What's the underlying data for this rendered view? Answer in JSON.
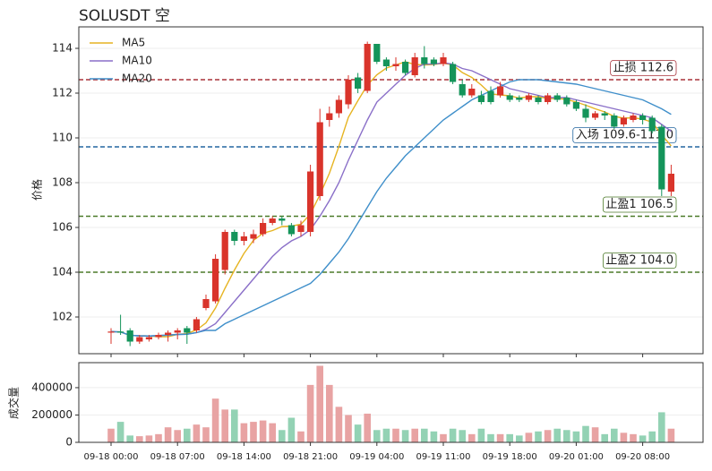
{
  "chart_data": [
    {
      "type": "candlestick",
      "title": "SOLUSDT  空",
      "ylabel": "价格",
      "x": [
        "09-18 00:00",
        "09-18 01:00",
        "09-18 02:00",
        "09-18 03:00",
        "09-18 04:00",
        "09-18 05:00",
        "09-18 06:00",
        "09-18 07:00",
        "09-18 08:00",
        "09-18 09:00",
        "09-18 10:00",
        "09-18 11:00",
        "09-18 12:00",
        "09-18 13:00",
        "09-18 14:00",
        "09-18 15:00",
        "09-18 16:00",
        "09-18 17:00",
        "09-18 18:00",
        "09-18 19:00",
        "09-18 20:00",
        "09-18 21:00",
        "09-18 22:00",
        "09-18 23:00",
        "09-19 00:00",
        "09-19 01:00",
        "09-19 02:00",
        "09-19 03:00",
        "09-19 04:00",
        "09-19 05:00",
        "09-19 06:00",
        "09-19 07:00",
        "09-19 08:00",
        "09-19 09:00",
        "09-19 10:00",
        "09-19 11:00",
        "09-19 12:00",
        "09-19 13:00",
        "09-19 14:00",
        "09-19 15:00",
        "09-19 16:00",
        "09-19 17:00",
        "09-19 18:00",
        "09-19 19:00",
        "09-19 20:00",
        "09-19 21:00",
        "09-19 22:00",
        "09-19 23:00",
        "09-20 00:00",
        "09-20 01:00",
        "09-20 02:00",
        "09-20 03:00",
        "09-20 04:00",
        "09-20 05:00",
        "09-20 06:00",
        "09-20 07:00",
        "09-20 08:00",
        "09-20 09:00",
        "09-20 10:00",
        "09-20 11:00"
      ],
      "xticks": [
        "09-18 00:00",
        "09-18 07:00",
        "09-18 14:00",
        "09-18 21:00",
        "09-19 04:00",
        "09-19 11:00",
        "09-19 18:00",
        "09-20 01:00",
        "09-20 08:00"
      ],
      "open": [
        101.3,
        101.35,
        101.4,
        100.9,
        101.0,
        101.1,
        101.2,
        101.3,
        101.5,
        101.4,
        102.4,
        102.7,
        104.1,
        105.8,
        105.4,
        105.5,
        105.7,
        106.2,
        106.4,
        106.1,
        105.8,
        105.8,
        107.4,
        110.8,
        111.1,
        111.5,
        112.7,
        112.1,
        114.2,
        113.5,
        113.2,
        113.4,
        112.8,
        113.6,
        113.5,
        113.3,
        113.3,
        112.4,
        111.9,
        111.9,
        112.1,
        111.9,
        111.9,
        111.8,
        111.7,
        111.8,
        111.6,
        111.9,
        111.8,
        111.6,
        111.3,
        110.9,
        111.1,
        111.0,
        110.6,
        110.8,
        111.0,
        110.9,
        110.5,
        107.6
      ],
      "high": [
        101.5,
        102.1,
        101.5,
        101.2,
        101.2,
        101.3,
        101.4,
        101.5,
        101.6,
        102.0,
        103.0,
        104.8,
        105.9,
        105.9,
        105.8,
        105.9,
        106.4,
        106.5,
        106.5,
        106.2,
        106.3,
        108.8,
        111.3,
        111.4,
        111.9,
        112.8,
        112.9,
        114.3,
        114.2,
        113.6,
        113.6,
        113.5,
        113.8,
        114.1,
        113.6,
        113.8,
        113.4,
        112.6,
        112.4,
        112.1,
        112.3,
        112.5,
        112.0,
        111.9,
        112.0,
        111.9,
        112.0,
        112.0,
        111.9,
        111.7,
        111.5,
        111.2,
        111.2,
        111.1,
        111.0,
        111.1,
        111.1,
        111.0,
        110.6,
        108.8
      ],
      "low": [
        100.8,
        101.2,
        100.7,
        100.8,
        100.9,
        101.0,
        100.9,
        101.0,
        100.8,
        101.3,
        102.3,
        102.6,
        103.9,
        105.2,
        105.2,
        105.3,
        105.6,
        106.1,
        106.1,
        105.6,
        105.6,
        105.6,
        107.2,
        110.5,
        110.9,
        111.3,
        112.0,
        112.0,
        113.3,
        113.0,
        113.0,
        112.8,
        112.7,
        113.1,
        113.2,
        113.2,
        112.4,
        111.8,
        111.8,
        111.5,
        111.5,
        111.8,
        111.6,
        111.6,
        111.6,
        111.5,
        111.5,
        111.6,
        111.4,
        111.2,
        110.7,
        110.8,
        110.8,
        110.4,
        110.5,
        110.7,
        110.6,
        110.2,
        107.4,
        107.4
      ],
      "close": [
        101.35,
        101.3,
        100.9,
        101.1,
        101.1,
        101.2,
        101.3,
        101.4,
        101.3,
        101.9,
        102.8,
        104.6,
        105.8,
        105.4,
        105.6,
        105.7,
        106.2,
        106.4,
        106.3,
        105.7,
        106.1,
        108.5,
        110.7,
        111.1,
        111.7,
        112.6,
        112.2,
        114.2,
        113.4,
        113.2,
        113.3,
        112.9,
        113.6,
        113.3,
        113.3,
        113.6,
        112.5,
        111.9,
        112.2,
        111.6,
        111.6,
        112.3,
        111.7,
        111.7,
        111.9,
        111.6,
        111.9,
        111.7,
        111.5,
        111.3,
        110.9,
        111.1,
        111.0,
        110.5,
        110.9,
        111.0,
        110.8,
        110.3,
        107.7,
        108.4
      ],
      "up_color": "#d9342b",
      "down_color": "#14945a",
      "series": [
        {
          "name": "MA5",
          "color": "#e6b422",
          "values": [
            101.35,
            101.33,
            101.18,
            101.16,
            101.15,
            101.12,
            101.12,
            101.22,
            101.26,
            101.42,
            101.74,
            102.4,
            103.28,
            104.1,
            104.84,
            105.42,
            105.74,
            105.86,
            106.04,
            106.06,
            106.14,
            106.6,
            107.46,
            108.42,
            109.62,
            110.92,
            111.66,
            112.36,
            112.82,
            113.12,
            113.26,
            113.4,
            113.28,
            113.26,
            113.28,
            113.34,
            113.26,
            112.92,
            112.7,
            112.36,
            111.96,
            111.92,
            111.88,
            111.78,
            111.84,
            111.84,
            111.76,
            111.76,
            111.72,
            111.6,
            111.46,
            111.3,
            111.16,
            110.96,
            110.88,
            110.9,
            110.84,
            110.7,
            110.14,
            109.64
          ]
        },
        {
          "name": "MA10",
          "color": "#8a6fc8",
          "values": [
            101.35,
            101.33,
            101.18,
            101.16,
            101.15,
            101.17,
            101.19,
            101.22,
            101.23,
            101.3,
            101.45,
            101.7,
            102.2,
            102.7,
            103.2,
            103.7,
            104.2,
            104.7,
            105.1,
            105.4,
            105.6,
            105.9,
            106.5,
            107.2,
            108.0,
            109.0,
            109.9,
            110.8,
            111.6,
            112.0,
            112.4,
            112.8,
            113.1,
            113.3,
            113.3,
            113.35,
            113.3,
            113.1,
            113.0,
            112.8,
            112.6,
            112.4,
            112.2,
            112.1,
            112.0,
            111.9,
            111.8,
            111.8,
            111.8,
            111.7,
            111.6,
            111.5,
            111.4,
            111.3,
            111.2,
            111.1,
            111.0,
            110.9,
            110.6,
            110.3
          ]
        },
        {
          "name": "MA20",
          "color": "#3f8fca",
          "values": [
            101.35,
            101.33,
            101.18,
            101.16,
            101.15,
            101.17,
            101.19,
            101.22,
            101.23,
            101.3,
            101.4,
            101.4,
            101.7,
            101.9,
            102.1,
            102.3,
            102.5,
            102.7,
            102.9,
            103.1,
            103.3,
            103.5,
            103.9,
            104.4,
            104.9,
            105.5,
            106.2,
            106.9,
            107.6,
            108.2,
            108.7,
            109.2,
            109.6,
            110.0,
            110.4,
            110.8,
            111.1,
            111.4,
            111.7,
            111.9,
            112.1,
            112.3,
            112.5,
            112.6,
            112.6,
            112.6,
            112.55,
            112.5,
            112.45,
            112.4,
            112.3,
            112.2,
            112.1,
            112.0,
            111.9,
            111.8,
            111.7,
            111.5,
            111.3,
            111.05
          ]
        }
      ],
      "hlines": [
        {
          "value": 112.6,
          "label": "止损 112.6",
          "color": "#a8323a"
        },
        {
          "value": 109.6,
          "label": "入场 109.6-111.0",
          "color": "#2366a0"
        },
        {
          "value": 106.5,
          "label": "止盈1 106.5",
          "color": "#4b7a28"
        },
        {
          "value": 104.0,
          "label": "止盈2 104.0",
          "color": "#4b7a28"
        }
      ],
      "ylim": [
        100.36,
        114.96
      ],
      "yticks": [
        102,
        104,
        106,
        108,
        110,
        112,
        114
      ],
      "grid": true,
      "legend": "upper left"
    },
    {
      "type": "bar",
      "ylabel": "成交量",
      "values": [
        100000,
        150000,
        50000,
        45000,
        50000,
        60000,
        110000,
        90000,
        100000,
        130000,
        110000,
        320000,
        240000,
        240000,
        140000,
        150000,
        160000,
        140000,
        90000,
        180000,
        80000,
        420000,
        560000,
        420000,
        260000,
        200000,
        130000,
        210000,
        90000,
        100000,
        100000,
        90000,
        100000,
        100000,
        80000,
        60000,
        100000,
        90000,
        60000,
        100000,
        60000,
        60000,
        60000,
        50000,
        70000,
        80000,
        90000,
        100000,
        90000,
        80000,
        120000,
        110000,
        60000,
        100000,
        70000,
        60000,
        50000,
        80000,
        220000,
        100000
      ],
      "up_color": "#e8a3a3",
      "down_color": "#93d2b4",
      "ylim": [
        0,
        583000
      ],
      "yticks": [
        0,
        200000,
        400000
      ],
      "grid": true
    }
  ]
}
